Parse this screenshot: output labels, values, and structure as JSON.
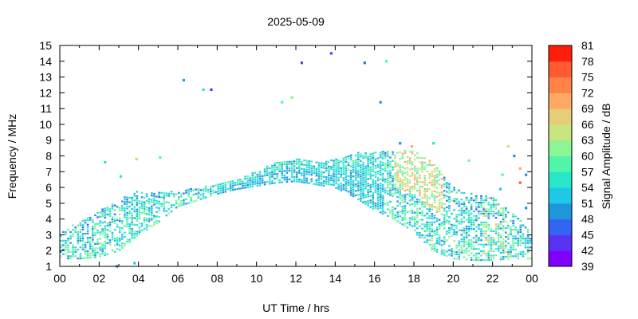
{
  "chart_data": {
    "type": "heatmap",
    "title": "2025-05-09",
    "xlabel": "UT Time / hrs",
    "ylabel": "Frequency / MHz",
    "xlim": [
      0,
      24
    ],
    "ylim": [
      1,
      15
    ],
    "x_ticks": [
      "00",
      "02",
      "04",
      "06",
      "08",
      "10",
      "12",
      "14",
      "16",
      "18",
      "20",
      "22",
      "00"
    ],
    "y_ticks": [
      "1",
      "2",
      "3",
      "4",
      "5",
      "6",
      "7",
      "8",
      "9",
      "10",
      "11",
      "12",
      "13",
      "14",
      "15"
    ],
    "colorbar": {
      "label": "Signal Amplitude / dB",
      "range": [
        39,
        81
      ],
      "ticks": [
        "81",
        "78",
        "75",
        "72",
        "69",
        "66",
        "63",
        "60",
        "57",
        "54",
        "51",
        "48",
        "45",
        "42",
        "39"
      ],
      "colors": [
        "#7f00ff",
        "#5a32f5",
        "#3266f0",
        "#1e96dc",
        "#1ec8e6",
        "#28e6c8",
        "#50f5aa",
        "#8cf596",
        "#c8e67d",
        "#e6cd78",
        "#ffaa64",
        "#ff8246",
        "#ff5a32",
        "#ff1e0a"
      ]
    },
    "band_upper_envelope": {
      "x": [
        0,
        1,
        2,
        3,
        4,
        5,
        6,
        7,
        8,
        9,
        10,
        11,
        12,
        13,
        14,
        15,
        16,
        17,
        18,
        19,
        20,
        21,
        22,
        23,
        24
      ],
      "y": [
        3.2,
        3.8,
        4.5,
        5.2,
        5.8,
        5.7,
        5.8,
        6.0,
        6.2,
        6.5,
        7.0,
        7.6,
        7.8,
        7.6,
        7.8,
        8.2,
        8.2,
        8.4,
        8.3,
        7.6,
        6.0,
        5.6,
        5.4,
        4.5,
        3.2
      ]
    },
    "band_lower_envelope": {
      "x": [
        0,
        1,
        2,
        3,
        4,
        5,
        6,
        7,
        8,
        9,
        10,
        11,
        12,
        13,
        14,
        15,
        16,
        17,
        18,
        19,
        20,
        21,
        22,
        23,
        24
      ],
      "y": [
        1.5,
        1.5,
        1.6,
        2.0,
        3.0,
        3.8,
        4.8,
        5.2,
        5.6,
        5.9,
        6.1,
        6.3,
        6.4,
        6.2,
        6.0,
        5.4,
        4.6,
        4.0,
        3.2,
        2.0,
        1.5,
        1.4,
        1.4,
        1.5,
        1.5
      ]
    },
    "outlier_points": [
      {
        "x": 6.3,
        "y": 12.8,
        "db": 50
      },
      {
        "x": 7.3,
        "y": 12.2,
        "db": 54
      },
      {
        "x": 7.7,
        "y": 12.2,
        "db": 42
      },
      {
        "x": 11.3,
        "y": 11.4,
        "db": 57
      },
      {
        "x": 11.8,
        "y": 11.7,
        "db": 60
      },
      {
        "x": 12.3,
        "y": 13.9,
        "db": 42
      },
      {
        "x": 13.8,
        "y": 14.5,
        "db": 42
      },
      {
        "x": 15.5,
        "y": 13.9,
        "db": 45
      },
      {
        "x": 16.3,
        "y": 11.4,
        "db": 48
      },
      {
        "x": 16.6,
        "y": 14.0,
        "db": 57
      },
      {
        "x": 17.3,
        "y": 8.8,
        "db": 48
      },
      {
        "x": 17.9,
        "y": 8.6,
        "db": 69
      },
      {
        "x": 19.0,
        "y": 8.8,
        "db": 54
      },
      {
        "x": 22.8,
        "y": 8.6,
        "db": 63
      },
      {
        "x": 23.1,
        "y": 8.0,
        "db": 48
      },
      {
        "x": 2.3,
        "y": 7.6,
        "db": 54
      },
      {
        "x": 3.9,
        "y": 7.8,
        "db": 66
      },
      {
        "x": 5.1,
        "y": 7.9,
        "db": 57
      },
      {
        "x": 3.1,
        "y": 6.7,
        "db": 54
      },
      {
        "x": 23.4,
        "y": 7.2,
        "db": 69
      },
      {
        "x": 23.4,
        "y": 6.3,
        "db": 75
      },
      {
        "x": 23.7,
        "y": 6.8,
        "db": 48
      },
      {
        "x": 20.8,
        "y": 7.7,
        "db": 60
      },
      {
        "x": 22.5,
        "y": 6.8,
        "db": 57
      },
      {
        "x": 22.4,
        "y": 5.9,
        "db": 51
      },
      {
        "x": 23.7,
        "y": 4.7,
        "db": 48
      },
      {
        "x": 3.8,
        "y": 1.2,
        "db": 51
      },
      {
        "x": 2.9,
        "y": 1.0,
        "db": 48
      }
    ]
  }
}
